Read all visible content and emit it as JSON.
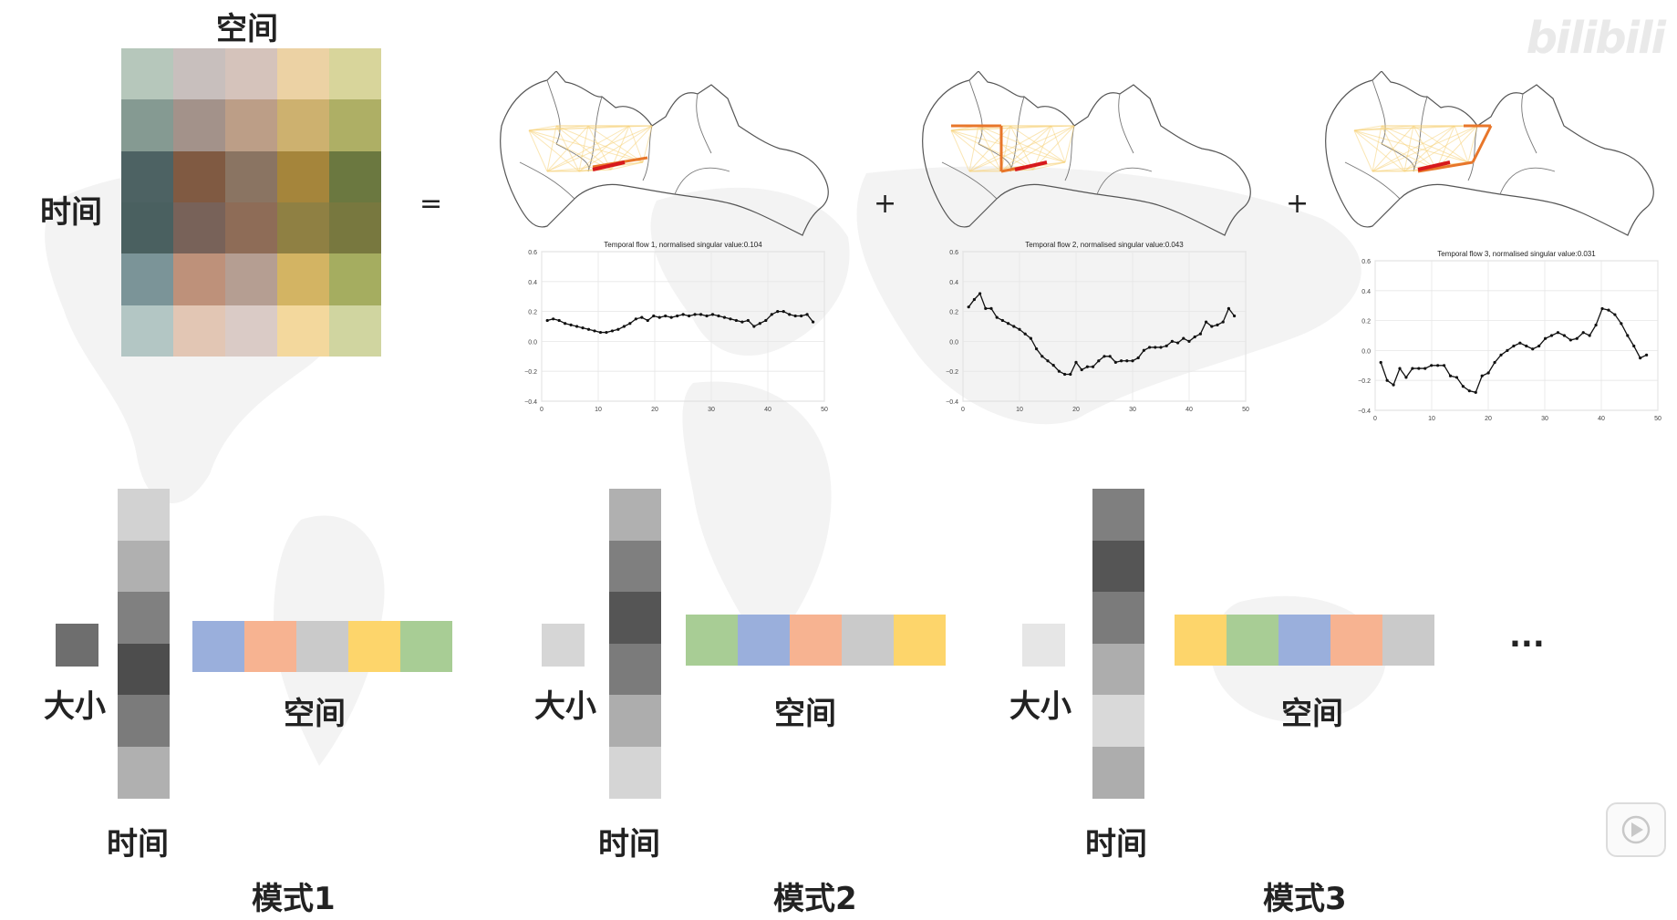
{
  "watermark": "bilibili",
  "matrix": {
    "top_label": "空间",
    "side_label": "时间",
    "colors": [
      [
        "#b6c7bb",
        "#c8bfbd",
        "#d5c3bb",
        "#ecd2a4",
        "#d8d59b"
      ],
      [
        "#859a92",
        "#a3928a",
        "#bc9e87",
        "#cdb16f",
        "#aeaf65"
      ],
      [
        "#4d6263",
        "#805a42",
        "#8a7462",
        "#a5853b",
        "#6b7840"
      ],
      [
        "#4a6060",
        "#786259",
        "#8e6c57",
        "#8f8043",
        "#78783f"
      ],
      [
        "#7b9498",
        "#be917a",
        "#b59e92",
        "#d3b463",
        "#a5ad60"
      ],
      [
        "#b3c6c4",
        "#e2c6b4",
        "#dacbc6",
        "#f3d89d",
        "#d0d5a0"
      ]
    ]
  },
  "operators": {
    "equals": "=",
    "plus": "+"
  },
  "plots": [
    {
      "title": "Temporal flow 1, normalised singular value:0.104",
      "yticks": [
        "0.6",
        "0.4",
        "0.2",
        "0.0",
        "−0.2",
        "−0.4"
      ],
      "xticks": [
        "0",
        "10",
        "20",
        "30",
        "40",
        "50"
      ],
      "values": [
        0.14,
        0.15,
        0.14,
        0.12,
        0.11,
        0.1,
        0.09,
        0.08,
        0.07,
        0.06,
        0.06,
        0.07,
        0.08,
        0.1,
        0.12,
        0.15,
        0.16,
        0.14,
        0.17,
        0.16,
        0.17,
        0.16,
        0.17,
        0.18,
        0.17,
        0.18,
        0.18,
        0.17,
        0.18,
        0.17,
        0.16,
        0.15,
        0.14,
        0.13,
        0.14,
        0.1,
        0.12,
        0.14,
        0.18,
        0.2,
        0.2,
        0.18,
        0.17,
        0.17,
        0.18,
        0.13
      ]
    },
    {
      "title": "Temporal flow 2, normalised singular value:0.043",
      "yticks": [
        "0.6",
        "0.4",
        "0.2",
        "0.0",
        "−0.2",
        "−0.4"
      ],
      "xticks": [
        "0",
        "10",
        "20",
        "30",
        "40",
        "50"
      ],
      "values": [
        0.23,
        0.28,
        0.32,
        0.22,
        0.22,
        0.16,
        0.14,
        0.12,
        0.1,
        0.08,
        0.05,
        0.02,
        -0.05,
        -0.1,
        -0.13,
        -0.16,
        -0.2,
        -0.22,
        -0.22,
        -0.14,
        -0.19,
        -0.17,
        -0.17,
        -0.13,
        -0.1,
        -0.1,
        -0.14,
        -0.13,
        -0.13,
        -0.13,
        -0.11,
        -0.06,
        -0.04,
        -0.04,
        -0.04,
        -0.03,
        0.0,
        -0.01,
        0.02,
        0.0,
        0.03,
        0.05,
        0.13,
        0.1,
        0.11,
        0.13,
        0.22,
        0.17
      ]
    },
    {
      "title": "Temporal flow 3, normalised singular value:0.031",
      "yticks": [
        "0.6",
        "0.4",
        "0.2",
        "0.0",
        "−0.2",
        "−0.4"
      ],
      "xticks": [
        "0",
        "10",
        "20",
        "30",
        "40",
        "50"
      ],
      "values": [
        -0.08,
        -0.2,
        -0.23,
        -0.12,
        -0.18,
        -0.12,
        -0.12,
        -0.12,
        -0.1,
        -0.1,
        -0.1,
        -0.17,
        -0.18,
        -0.24,
        -0.27,
        -0.28,
        -0.17,
        -0.15,
        -0.08,
        -0.03,
        0.0,
        0.03,
        0.05,
        0.03,
        0.01,
        0.03,
        0.08,
        0.1,
        0.12,
        0.1,
        0.07,
        0.08,
        0.12,
        0.1,
        0.17,
        0.28,
        0.27,
        0.24,
        0.18,
        0.1,
        0.03,
        -0.05,
        -0.03
      ]
    }
  ],
  "modes": [
    {
      "name": "模式1",
      "size_label": "大小",
      "time_label": "时间",
      "space_label": "空间",
      "size_color": "#6e6e6e",
      "time_colors": [
        "#d2d2d2",
        "#b0b0b0",
        "#808080",
        "#4d4d4d",
        "#7b7b7b",
        "#b0b0b0"
      ],
      "space_colors": [
        "#9aafdc",
        "#f7b391",
        "#cacaca",
        "#fdd56b",
        "#a8cd95"
      ]
    },
    {
      "name": "模式2",
      "size_label": "大小",
      "time_label": "时间",
      "space_label": "空间",
      "size_color": "#d6d6d6",
      "time_colors": [
        "#b0b0b0",
        "#7f7f7f",
        "#555555",
        "#7b7b7b",
        "#adadad",
        "#d5d5d5"
      ],
      "space_colors": [
        "#a8cd95",
        "#9aafdc",
        "#f7b391",
        "#cacaca",
        "#fdd56b"
      ]
    },
    {
      "name": "模式3",
      "size_label": "大小",
      "time_label": "时间",
      "space_label": "空间",
      "size_color": "#e6e6e6",
      "time_colors": [
        "#7f7f7f",
        "#555555",
        "#7b7b7b",
        "#adadad",
        "#d9d9d9",
        "#adadad"
      ],
      "space_colors": [
        "#fdd56b",
        "#a8cd95",
        "#9aafdc",
        "#f7b391",
        "#cacaca"
      ]
    }
  ],
  "ellipsis": "..."
}
